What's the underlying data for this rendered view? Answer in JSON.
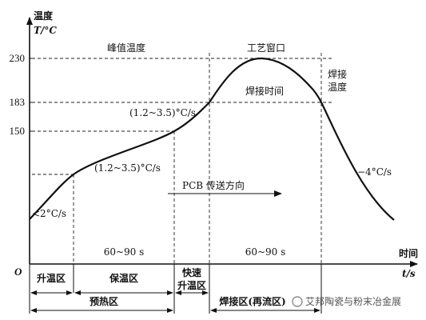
{
  "y_axis": {
    "title": "温度",
    "unit": "T/°C",
    "ticks": [
      "230",
      "183",
      "150"
    ]
  },
  "x_axis": {
    "title": "时间",
    "unit": "t/s",
    "origin": "O"
  },
  "labels": {
    "peak_temp": "峰值温度",
    "process_window": "工艺窗口",
    "welding_time": "焊接时间",
    "welding_temp_1": "焊接",
    "welding_temp_2": "温度",
    "rate_fast": "(1.2~3.5)°C/s",
    "rate_preheat": "(1.2~3.5)°C/s",
    "rate_start": "<2°C/s",
    "rate_cool": "−4°C/s",
    "pcb_direction": "PCB 传送方向",
    "duration_soak": "60~90 s",
    "duration_reflow": "60~90 s"
  },
  "zones": {
    "heat_up": "升温区",
    "soak": "保温区",
    "fast_heat_1": "快速",
    "fast_heat_2": "升温区",
    "preheat": "预热区",
    "reflow": "焊接区(再流区)"
  },
  "watermark": "艾邦陶瓷与粉末冶金展"
}
